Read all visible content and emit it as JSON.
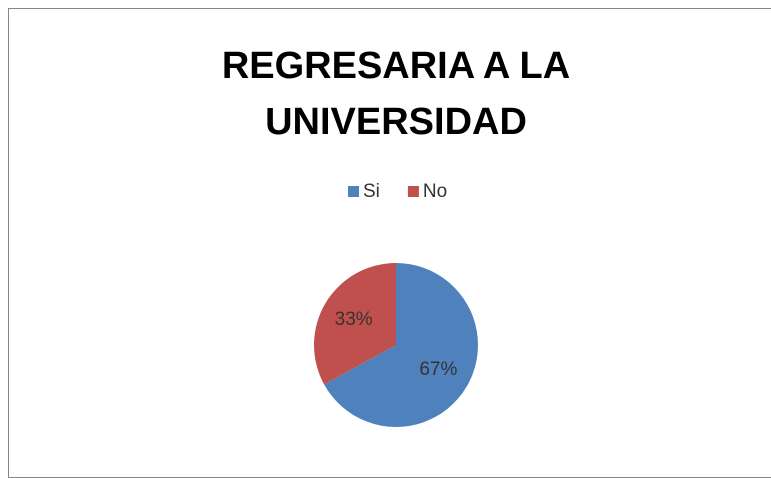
{
  "chart_data": {
    "type": "pie",
    "title": "REGRESARIA A LA UNIVERSIDAD",
    "categories": [
      "Si",
      "No"
    ],
    "values": [
      67,
      33
    ],
    "value_labels": [
      "67%",
      "33%"
    ],
    "colors": [
      "#4f81bd",
      "#c0504d"
    ],
    "legend": "top"
  }
}
